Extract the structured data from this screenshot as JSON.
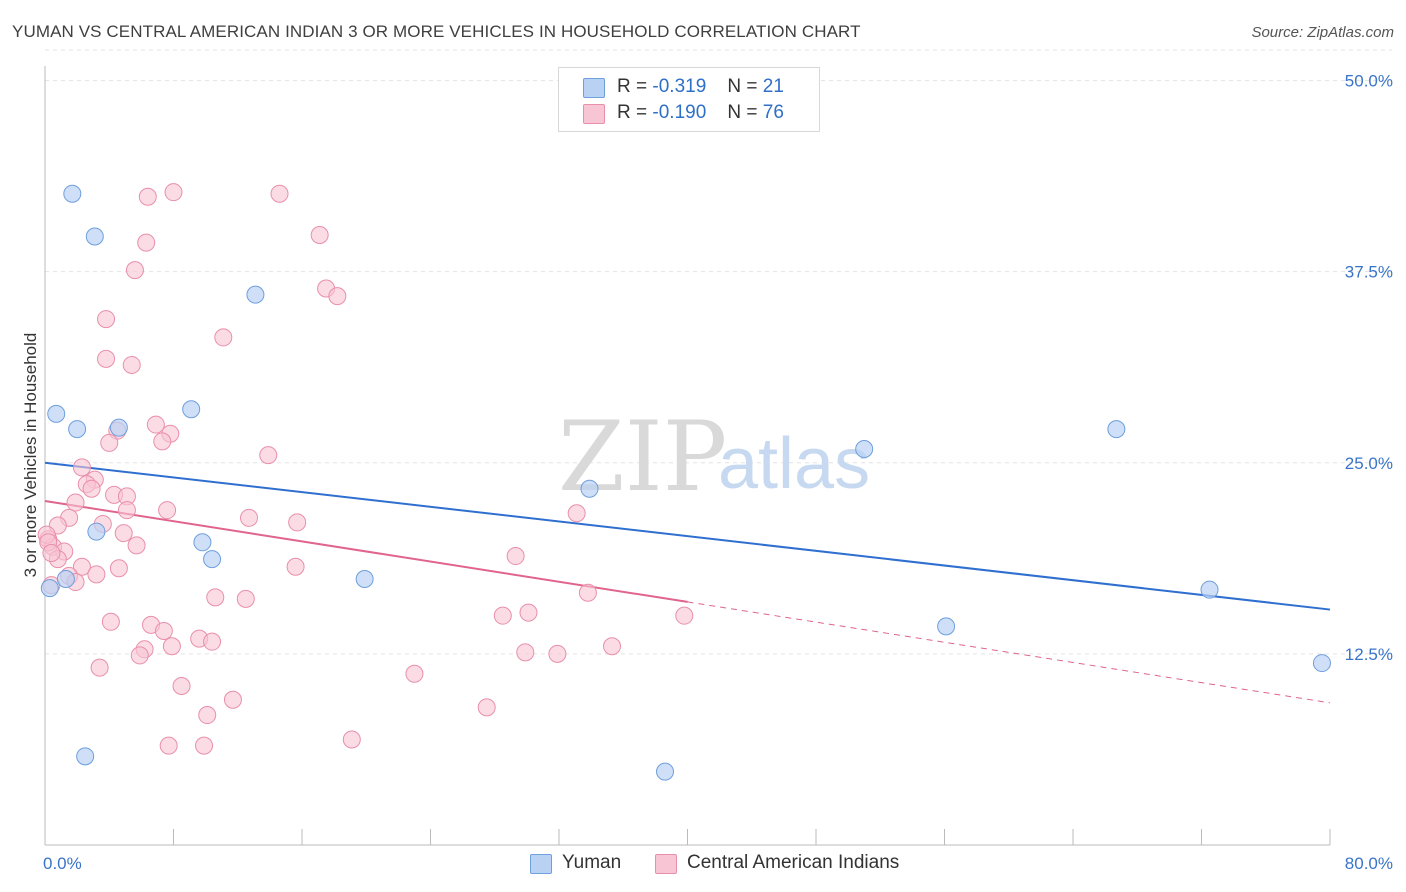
{
  "title": "YUMAN VS CENTRAL AMERICAN INDIAN 3 OR MORE VEHICLES IN HOUSEHOLD CORRELATION CHART",
  "source": "Source: ZipAtlas.com",
  "watermark": {
    "zip": "ZIP",
    "atlas": "atlas"
  },
  "legend": {
    "r_label": "R =",
    "n_label": "N =",
    "yuman": {
      "r": "-0.319",
      "n": "21"
    },
    "central": {
      "r": "-0.190",
      "n": "76"
    }
  },
  "colors": {
    "yuman_fill": "#b9d2f3",
    "yuman_stroke": "#6f9fdd",
    "yuman_line": "#2f6fcf",
    "central_fill": "#f8c5d4",
    "central_stroke": "#e98fab",
    "central_line": "#e0648c",
    "axis_label": "#3a74c9",
    "grid": "#e3e3e3"
  },
  "chart_data": {
    "type": "scatter",
    "title": "YUMAN VS CENTRAL AMERICAN INDIAN 3 OR MORE VEHICLES IN HOUSEHOLD CORRELATION CHART",
    "xlabel": "",
    "ylabel": "3 or more Vehicles in Household",
    "xlim": [
      0,
      80
    ],
    "ylim": [
      0,
      52
    ],
    "x_tick_labels": [
      "0.0%",
      "80.0%"
    ],
    "y_ticks": [
      12.5,
      25.0,
      37.5,
      50.0
    ],
    "y_tick_labels": [
      "12.5%",
      "25.0%",
      "37.5%",
      "50.0%"
    ],
    "grid": true,
    "legend_position": "top-center",
    "series": [
      {
        "name": "Yuman",
        "points": [
          [
            1.7,
            42.6
          ],
          [
            3.1,
            39.8
          ],
          [
            0.7,
            28.2
          ],
          [
            2.0,
            27.2
          ],
          [
            4.6,
            27.3
          ],
          [
            9.1,
            28.5
          ],
          [
            13.1,
            36.0
          ],
          [
            0.3,
            16.8
          ],
          [
            1.3,
            17.4
          ],
          [
            3.2,
            20.5
          ],
          [
            9.8,
            19.8
          ],
          [
            10.4,
            18.7
          ],
          [
            19.9,
            17.4
          ],
          [
            33.9,
            23.3
          ],
          [
            51.0,
            25.9
          ],
          [
            66.7,
            27.2
          ],
          [
            72.5,
            16.7
          ],
          [
            56.1,
            14.3
          ],
          [
            79.5,
            11.9
          ],
          [
            2.5,
            5.8
          ],
          [
            38.6,
            4.8
          ]
        ],
        "trend": {
          "x": [
            0,
            80
          ],
          "y": [
            25.0,
            15.4
          ],
          "style": "solid"
        }
      },
      {
        "name": "Central American Indians",
        "points": [
          [
            6.4,
            42.4
          ],
          [
            8.0,
            42.7
          ],
          [
            14.6,
            42.6
          ],
          [
            6.3,
            39.4
          ],
          [
            17.1,
            39.9
          ],
          [
            5.6,
            37.6
          ],
          [
            17.5,
            36.4
          ],
          [
            18.2,
            35.9
          ],
          [
            3.8,
            34.4
          ],
          [
            11.1,
            33.2
          ],
          [
            3.8,
            31.8
          ],
          [
            5.4,
            31.4
          ],
          [
            4.5,
            27.1
          ],
          [
            6.9,
            27.5
          ],
          [
            7.8,
            26.9
          ],
          [
            4.0,
            26.3
          ],
          [
            7.3,
            26.4
          ],
          [
            13.9,
            25.5
          ],
          [
            2.3,
            24.7
          ],
          [
            3.1,
            23.9
          ],
          [
            2.6,
            23.6
          ],
          [
            2.9,
            23.3
          ],
          [
            4.3,
            22.9
          ],
          [
            5.1,
            22.8
          ],
          [
            1.9,
            22.4
          ],
          [
            5.1,
            21.9
          ],
          [
            7.6,
            21.9
          ],
          [
            1.5,
            21.4
          ],
          [
            12.7,
            21.4
          ],
          [
            15.7,
            21.1
          ],
          [
            3.6,
            21.0
          ],
          [
            0.8,
            20.9
          ],
          [
            4.9,
            20.4
          ],
          [
            0.2,
            20.0
          ],
          [
            0.5,
            19.5
          ],
          [
            5.7,
            19.6
          ],
          [
            1.2,
            19.2
          ],
          [
            0.8,
            18.7
          ],
          [
            2.3,
            18.2
          ],
          [
            4.6,
            18.1
          ],
          [
            15.6,
            18.2
          ],
          [
            29.3,
            18.9
          ],
          [
            1.5,
            17.6
          ],
          [
            1.9,
            17.2
          ],
          [
            3.2,
            17.7
          ],
          [
            0.4,
            17.0
          ],
          [
            33.1,
            21.7
          ],
          [
            10.6,
            16.2
          ],
          [
            12.5,
            16.1
          ],
          [
            33.8,
            16.5
          ],
          [
            4.1,
            14.6
          ],
          [
            6.6,
            14.4
          ],
          [
            7.4,
            14.0
          ],
          [
            28.5,
            15.0
          ],
          [
            30.1,
            15.2
          ],
          [
            39.8,
            15.0
          ],
          [
            7.9,
            13.0
          ],
          [
            9.6,
            13.5
          ],
          [
            10.4,
            13.3
          ],
          [
            6.2,
            12.8
          ],
          [
            5.9,
            12.4
          ],
          [
            29.9,
            12.6
          ],
          [
            31.9,
            12.5
          ],
          [
            35.3,
            13.0
          ],
          [
            23.0,
            11.2
          ],
          [
            3.4,
            11.6
          ],
          [
            8.5,
            10.4
          ],
          [
            11.7,
            9.5
          ],
          [
            10.1,
            8.5
          ],
          [
            27.5,
            9.0
          ],
          [
            7.7,
            6.5
          ],
          [
            9.9,
            6.5
          ],
          [
            19.1,
            6.9
          ],
          [
            0.1,
            20.3
          ],
          [
            0.2,
            19.8
          ],
          [
            0.4,
            19.1
          ]
        ],
        "trend": {
          "x": [
            0,
            40
          ],
          "y": [
            22.5,
            15.9
          ],
          "style": "solid",
          "extended": {
            "x": [
              40,
              80
            ],
            "y": [
              15.9,
              9.3
            ],
            "style": "dashed"
          }
        }
      }
    ]
  },
  "bottom_legend": {
    "yuman": "Yuman",
    "central": "Central American Indians"
  }
}
